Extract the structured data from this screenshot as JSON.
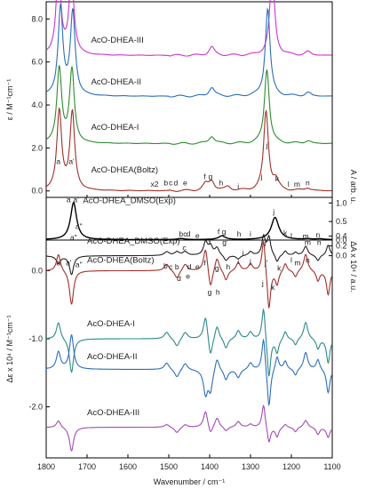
{
  "chart_data": {
    "type": "line",
    "xlabel": "Wavenumber / cm⁻¹",
    "x_ticks": [
      "1800",
      "1700",
      "1600",
      "1500",
      "1400",
      "1300",
      "1200",
      "1100"
    ],
    "xlim": [
      1800,
      1100
    ],
    "panels": [
      {
        "id": "ir_calc",
        "ylabel": "ε / M⁻¹cm⁻¹",
        "y_ticks": [
          "0.0",
          "2.0",
          "4.0",
          "6.0",
          "8.0"
        ],
        "ylim": [
          -0.3,
          8.8
        ],
        "series": [
          {
            "name": "AcO-DHEA-III",
            "color": "#cc33cc",
            "offset": 6.3,
            "scale": 1.9,
            "peaks": [
              [
                1770,
                1.0,
                7
              ],
              [
                1738,
                0.95,
                7
              ],
              [
                1247,
                1.0,
                7
              ],
              [
                1395,
                0.1,
                8
              ],
              [
                1160,
                0.04,
                8
              ]
            ]
          },
          {
            "name": "AcO-DHEA-II",
            "color": "#2a6ebb",
            "offset": 4.4,
            "scale": 2.0,
            "peaks": [
              [
                1765,
                1.0,
                7
              ],
              [
                1735,
                0.95,
                7
              ],
              [
                1258,
                1.0,
                7
              ],
              [
                1395,
                0.1,
                8
              ],
              [
                1160,
                0.04,
                8
              ]
            ]
          },
          {
            "name": "AcO-DHEA-I",
            "color": "#2e8b2e",
            "offset": 2.2,
            "scale": 1.7,
            "peaks": [
              [
                1768,
                1.0,
                7
              ],
              [
                1737,
                0.98,
                7
              ],
              [
                1260,
                1.0,
                7
              ],
              [
                1395,
                0.1,
                8
              ],
              [
                1160,
                0.04,
                8
              ]
            ]
          },
          {
            "name": "AcO-DHEA(Boltz)",
            "color": "#a0302a",
            "offset": 0.0,
            "scale": 1.8,
            "peaks": [
              [
                1768,
                1.0,
                7
              ],
              [
                1736,
                0.98,
                7
              ],
              [
                1262,
                1.0,
                7
              ],
              [
                1410,
                0.08,
                8
              ],
              [
                1395,
                0.12,
                8
              ],
              [
                1355,
                0.05,
                8
              ],
              [
                1238,
                0.12,
                8
              ],
              [
                1160,
                0.04,
                8
              ]
            ]
          }
        ],
        "annotations": [
          "a",
          "a'",
          "b",
          "c",
          "d",
          "e",
          "f",
          "g",
          "h",
          "i",
          "j",
          "j'",
          "k",
          "l",
          "m",
          "n"
        ],
        "scale_note": "x2"
      },
      {
        "id": "ir_exp",
        "ylabel": "A / arb. u.",
        "y_ticks": [
          "0.0",
          "0.5",
          "1.0"
        ],
        "ylim": [
          0.0,
          1.15
        ],
        "series": [
          {
            "name": "AcO-DHEA_DMSO(Exp)",
            "color": "#000000",
            "peaks": [
              [
                1733,
                1.0,
                9
              ],
              [
                1240,
                0.6,
                11
              ],
              [
                1370,
                0.1,
                10
              ],
              [
                1470,
                0.03,
                10
              ],
              [
                1160,
                0.02,
                10
              ],
              [
                1130,
                0.02,
                10
              ]
            ]
          }
        ],
        "annotations": [
          "a",
          "a'",
          "a\"",
          "b",
          "c",
          "d",
          "e",
          "f",
          "g",
          "h",
          "i",
          "j",
          "k",
          "l",
          "m",
          "n"
        ]
      },
      {
        "id": "vcd",
        "ylabel": "Δε x 10⁴ / M⁻¹cm⁻¹",
        "y_ticks": [
          "0.0",
          "-1.0",
          "-2.0"
        ],
        "ylim": [
          -2.75,
          0.45
        ],
        "right_ylabel": "ΔA x 10⁴ / a.u.",
        "right_ticks": [
          "0.0",
          "0.2",
          "0.4"
        ],
        "series": [
          {
            "name": "AcO-DHEA_DMSO(Exp)",
            "color": "#222222",
            "offset": 0.0,
            "note": "experimental, right axis"
          },
          {
            "name": "AcO-DHEA(Boltz)",
            "color": "#a0302a",
            "offset": 0.0
          },
          {
            "name": "AcO-DHEA-I",
            "color": "#2a8a88",
            "offset": -1.0
          },
          {
            "name": "AcO-DHEA-II",
            "color": "#2a6ebb",
            "offset": -1.45
          },
          {
            "name": "AcO-DHEA-III",
            "color": "#a24bb5",
            "offset": -2.3
          }
        ],
        "annotations": [
          "a",
          "a'",
          "a\"",
          "b",
          "c",
          "d",
          "e",
          "f",
          "g",
          "g'",
          "h",
          "i",
          "j",
          "j'",
          "k",
          "l",
          "m",
          "n"
        ]
      }
    ]
  }
}
